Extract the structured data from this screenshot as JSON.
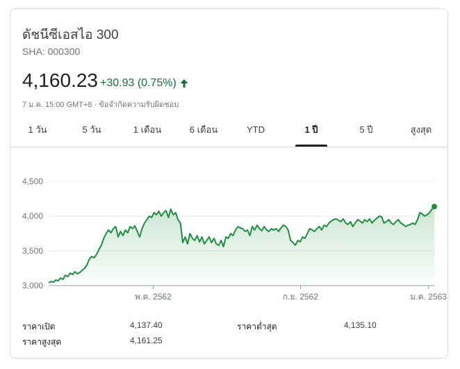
{
  "header": {
    "title": "ดัชนีซีเอสไอ 300",
    "ticker": "SHA: 000300",
    "price": "4,160.23",
    "change": "+30.93 (0.75%)",
    "timestamp": "7 ม.ค. 15:00 GMT+8 · ข้อจำกัดความรับผิดชอบ"
  },
  "tabs": [
    {
      "label": "1 วัน",
      "active": false
    },
    {
      "label": "5 วัน",
      "active": false
    },
    {
      "label": "1 เดือน",
      "active": false
    },
    {
      "label": "6 เดือน",
      "active": false
    },
    {
      "label": "YTD",
      "active": false
    },
    {
      "label": "1 ปี",
      "active": true
    },
    {
      "label": "5 ปี",
      "active": false
    },
    {
      "label": "สูงสุด",
      "active": false
    }
  ],
  "colors": {
    "line": "#1e8e3e",
    "positive": "#137333"
  },
  "chart_data": {
    "type": "area",
    "ylim": [
      3000,
      4500
    ],
    "yticks": [
      {
        "value": 4500,
        "label": "4,500"
      },
      {
        "value": 4000,
        "label": "4,000"
      },
      {
        "value": 3500,
        "label": "3,500"
      },
      {
        "value": 3000,
        "label": "3,000"
      }
    ],
    "xticks": [
      {
        "t": 0.271,
        "label": "พ.ค. 2562"
      },
      {
        "t": 0.653,
        "label": "ก.ย. 2562"
      },
      {
        "t": 0.985,
        "label": "ม.ค. 2563"
      }
    ],
    "values": [
      3040,
      3060,
      3050,
      3080,
      3070,
      3110,
      3090,
      3150,
      3130,
      3180,
      3160,
      3200,
      3170,
      3190,
      3220,
      3250,
      3300,
      3380,
      3420,
      3400,
      3450,
      3520,
      3580,
      3680,
      3750,
      3800,
      3760,
      3820,
      3850,
      3700,
      3780,
      3720,
      3800,
      3760,
      3850,
      3820,
      3860,
      3780,
      3700,
      3820,
      3900,
      3950,
      4000,
      3980,
      4050,
      4020,
      4070,
      4000,
      4050,
      4080,
      3980,
      4100,
      4020,
      4050,
      3950,
      3900,
      3620,
      3700,
      3600,
      3750,
      3680,
      3650,
      3720,
      3630,
      3700,
      3600,
      3650,
      3700,
      3620,
      3680,
      3600,
      3580,
      3650,
      3560,
      3700,
      3680,
      3750,
      3720,
      3800,
      3850,
      3830,
      3820,
      3780,
      3800,
      3720,
      3850,
      3800,
      3870,
      3820,
      3790,
      3850,
      3800,
      3780,
      3820,
      3800,
      3820,
      3780,
      3830,
      3870,
      3850,
      3800,
      3650,
      3620,
      3580,
      3650,
      3630,
      3700,
      3680,
      3750,
      3820,
      3800,
      3780,
      3820,
      3850,
      3800,
      3870,
      3850,
      3900,
      3930,
      3950,
      3960,
      3940,
      3920,
      3960,
      3900,
      3880,
      3920,
      3850,
      3900,
      3950,
      3930,
      3900,
      3950,
      3920,
      3960,
      3900,
      3940,
      3970,
      4000,
      3990,
      3900,
      3920,
      3950,
      3900,
      3880,
      3920,
      3950,
      3900,
      3880,
      3850,
      3870,
      3880,
      3900,
      3880,
      3950,
      4050,
      4030,
      4000,
      4020,
      4050,
      4100,
      4137
    ]
  },
  "stats": [
    {
      "label": "ราคาเปิด",
      "value": "4,137.40"
    },
    {
      "label": "ราคาต่ำสุด",
      "value": "4,135.10"
    },
    {
      "label": "ราคาสูงสุด",
      "value": "4,161.25"
    }
  ]
}
